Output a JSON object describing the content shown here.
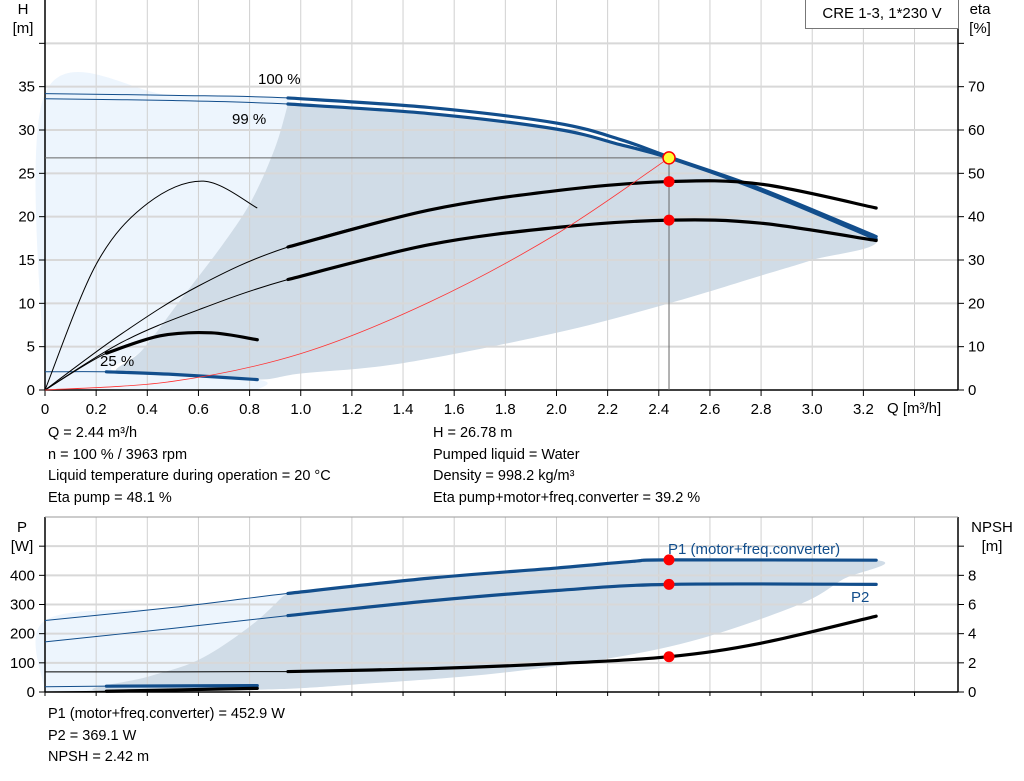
{
  "chart_data": [
    {
      "type": "line",
      "title": "CRE 1-3, 1*230 V",
      "xlabel": "Q [m³/h]",
      "ylabel": {
        "name": "H",
        "unit": "[m]"
      },
      "y2label": {
        "name": "eta",
        "unit": "[%]"
      },
      "grid": true,
      "xlim": [
        0,
        3.57
      ],
      "ylim": [
        0,
        45
      ],
      "y2lim": [
        0,
        90
      ],
      "xticks": [
        "0",
        "0.2",
        "0.4",
        "0.6",
        "0.8",
        "1.0",
        "1.2",
        "1.4",
        "1.6",
        "1.8",
        "2.0",
        "2.2",
        "2.4",
        "2.6",
        "2.8",
        "3.0",
        "3.2"
      ],
      "yticks": [
        "0",
        "5",
        "10",
        "15",
        "20",
        "25",
        "30",
        "35"
      ],
      "y2ticks": [
        "0",
        "10",
        "20",
        "30",
        "40",
        "50",
        "60",
        "70"
      ],
      "colors": {
        "curve": "#124e8c",
        "efficiency": "#000000",
        "system": "#ff3333",
        "region_operating": "#d0dce7",
        "region_extended": "#edf5fd",
        "marker": "#ff0000",
        "duty_point": "#ffff33"
      },
      "regions": [
        {
          "kind": "extended",
          "axis": "left",
          "points": [
            [
              0,
              0
            ],
            [
              0,
              34.2
            ],
            [
              0.5,
              34.0
            ],
            [
              0.95,
              33.7
            ],
            [
              0.95,
              33
            ],
            [
              0.9,
              28
            ],
            [
              0.81,
              22
            ],
            [
              0.7,
              17
            ],
            [
              0.53,
              10.4
            ],
            [
              0.38,
              4.6
            ],
            [
              0.28,
              2.1
            ],
            [
              0.83,
              1.2
            ],
            [
              0.83,
              0
            ]
          ]
        },
        {
          "kind": "operating",
          "axis": "left",
          "points": [
            [
              0.95,
              33.0
            ],
            [
              1.5,
              31.9
            ],
            [
              2.0,
              30.1
            ],
            [
              2.25,
              28.3
            ],
            [
              2.44,
              26.78
            ],
            [
              2.8,
              23.0
            ],
            [
              3.25,
              17.5
            ],
            [
              3.0,
              15
            ],
            [
              2.8,
              13.2
            ],
            [
              2.44,
              10
            ],
            [
              2.0,
              6.6
            ],
            [
              1.4,
              3.1
            ],
            [
              1.0,
              1.9
            ],
            [
              0.83,
              1.2
            ],
            [
              0.5,
              1.8
            ],
            [
              0.28,
              2.1
            ],
            [
              0.38,
              4.6
            ],
            [
              0.53,
              10.4
            ],
            [
              0.7,
              17
            ],
            [
              0.81,
              22
            ],
            [
              0.9,
              28
            ],
            [
              0.95,
              33
            ]
          ]
        }
      ],
      "series": [
        {
          "label": "100 %",
          "kind": "curve",
          "axis": "left",
          "thick_from": 0.95,
          "points": [
            [
              0,
              34.2
            ],
            [
              0.5,
              34.0
            ],
            [
              0.95,
              33.7
            ],
            [
              1.5,
              32.6
            ],
            [
              2.0,
              30.8
            ],
            [
              2.25,
              28.9
            ],
            [
              2.44,
              26.9
            ],
            [
              2.8,
              23.2
            ],
            [
              3.25,
              17.7
            ]
          ]
        },
        {
          "label": "99 %",
          "kind": "curve",
          "axis": "left",
          "thick_from": 0.95,
          "points": [
            [
              0,
              33.6
            ],
            [
              0.5,
              33.4
            ],
            [
              0.95,
              33.0
            ],
            [
              1.5,
              31.9
            ],
            [
              2.0,
              30.1
            ],
            [
              2.25,
              28.3
            ],
            [
              2.44,
              26.78
            ],
            [
              2.8,
              23.0
            ],
            [
              3.25,
              17.4
            ]
          ]
        },
        {
          "label": "25 %",
          "kind": "curve",
          "axis": "left",
          "thick_from": 0.24,
          "points": [
            [
              0,
              2.1
            ],
            [
              0.24,
              2.1
            ],
            [
              0.5,
              1.8
            ],
            [
              0.83,
              1.2
            ]
          ]
        },
        {
          "kind": "efficiency",
          "axis": "right",
          "thick_from": 0.95,
          "points": [
            [
              0,
              0
            ],
            [
              0.3,
              13
            ],
            [
              0.6,
              24
            ],
            [
              0.95,
              33
            ],
            [
              1.5,
              41.5
            ],
            [
              2.0,
              46
            ],
            [
              2.44,
              48.1
            ],
            [
              2.8,
              47.5
            ],
            [
              3.25,
              42
            ]
          ]
        },
        {
          "kind": "efficiency",
          "axis": "right",
          "thick_from": 0.95,
          "points": [
            [
              0,
              0
            ],
            [
              0.3,
              11
            ],
            [
              0.6,
              18.5
            ],
            [
              0.95,
              25.5
            ],
            [
              1.5,
              33.5
            ],
            [
              2.0,
              37.5
            ],
            [
              2.44,
              39.2
            ],
            [
              2.8,
              38.5
            ],
            [
              3.25,
              34.5
            ]
          ]
        },
        {
          "kind": "efficiency",
          "axis": "right",
          "thick_from": 99,
          "points": [
            [
              0,
              0
            ],
            [
              0.2,
              29
            ],
            [
              0.4,
              43
            ],
            [
              0.62,
              48.2
            ],
            [
              0.83,
              42
            ]
          ]
        },
        {
          "kind": "efficiency",
          "axis": "right",
          "thick_from": 0.24,
          "points": [
            [
              0,
              0
            ],
            [
              0.24,
              8.5
            ],
            [
              0.45,
              12.5
            ],
            [
              0.65,
              13.2
            ],
            [
              0.83,
              11.6
            ]
          ]
        },
        {
          "kind": "system",
          "axis": "left",
          "thick_from": 99,
          "points": [
            [
              0,
              0
            ],
            [
              0.5,
              1.0
            ],
            [
              1,
              4.2
            ],
            [
              1.5,
              10.1
            ],
            [
              2,
              18
            ],
            [
              2.44,
              26.78
            ]
          ]
        }
      ],
      "duty_point": {
        "q": 2.44,
        "h": 26.78,
        "eta_pump": 48.1,
        "eta_total": 39.2
      }
    },
    {
      "type": "line",
      "ylabel": {
        "name": "P",
        "unit": "[W]"
      },
      "y2label": {
        "name": "NPSH",
        "unit": "[m]"
      },
      "grid": true,
      "xlim": [
        0,
        3.57
      ],
      "ylim": [
        0,
        600
      ],
      "y2lim": [
        0,
        12
      ],
      "yticks": [
        "0",
        "100",
        "200",
        "300",
        "400"
      ],
      "y2ticks": [
        "0",
        "2",
        "4",
        "6",
        "8"
      ],
      "regions": [
        {
          "kind": "extended",
          "axis": "left",
          "points": [
            [
              0,
              0
            ],
            [
              0,
              245
            ],
            [
              0.5,
              290
            ],
            [
              0.95,
              338
            ],
            [
              0.93,
              328
            ],
            [
              0.8,
              224
            ],
            [
              0.6,
              110
            ],
            [
              0.4,
              52
            ],
            [
              0.2,
              5
            ],
            [
              0.2,
              0
            ]
          ]
        },
        {
          "kind": "operating",
          "axis": "left",
          "points": [
            [
              0.95,
              338
            ],
            [
              1.5,
              390
            ],
            [
              2.0,
              425
            ],
            [
              2.3,
              448
            ],
            [
              2.44,
              452.9
            ],
            [
              3.25,
              452
            ],
            [
              3.12,
              386
            ],
            [
              2.93,
              293
            ],
            [
              2.44,
              155
            ],
            [
              1.82,
              69
            ],
            [
              1.2,
              25
            ],
            [
              0.83,
              8
            ],
            [
              0.2,
              5
            ],
            [
              0.4,
              52
            ],
            [
              0.6,
              110
            ],
            [
              0.8,
              224
            ],
            [
              0.93,
              328
            ]
          ]
        }
      ],
      "series": [
        {
          "label": "P1 (motor+freq.converter)",
          "kind": "curve",
          "axis": "left",
          "thick_from": 0.95,
          "points": [
            [
              0,
              245
            ],
            [
              0.5,
              290
            ],
            [
              0.95,
              338
            ],
            [
              1.5,
              390
            ],
            [
              2.0,
              425
            ],
            [
              2.3,
              448
            ],
            [
              2.44,
              452.9
            ],
            [
              3.25,
              452
            ]
          ]
        },
        {
          "label": "P2",
          "kind": "curve",
          "axis": "left",
          "thick_from": 0.95,
          "points": [
            [
              0,
              172
            ],
            [
              0.5,
              218
            ],
            [
              0.95,
              262
            ],
            [
              1.5,
              312
            ],
            [
              2.0,
              348
            ],
            [
              2.44,
              369.1
            ],
            [
              3.25,
              369
            ]
          ]
        },
        {
          "kind": "curve",
          "axis": "left",
          "thick_from": 0.24,
          "points": [
            [
              0,
              18
            ],
            [
              0.24,
              20
            ],
            [
              0.83,
              22
            ]
          ]
        },
        {
          "kind": "efficiency",
          "axis": "right",
          "thick_from": 0.95,
          "points": [
            [
              0,
              1.38
            ],
            [
              0.95,
              1.4
            ],
            [
              1.5,
              1.6
            ],
            [
              2.0,
              1.95
            ],
            [
              2.44,
              2.42
            ],
            [
              2.8,
              3.35
            ],
            [
              3.25,
              5.2
            ]
          ]
        },
        {
          "kind": "efficiency",
          "axis": "right",
          "thick_from": 0.24,
          "points": [
            [
              0,
              0
            ],
            [
              0.24,
              0.05
            ],
            [
              0.83,
              0.25
            ]
          ]
        }
      ],
      "duty_point": {
        "q": 2.44,
        "p1": 452.9,
        "p2": 369.1,
        "npsh": 2.42
      }
    }
  ],
  "info_top": {
    "left": [
      "Q = 2.44 m³/h",
      "n = 100 % / 3963 rpm",
      "Liquid temperature during operation = 20 °C",
      "Eta pump = 48.1 %"
    ],
    "right": [
      "H = 26.78 m",
      "Pumped liquid = Water",
      "Density = 998.2 kg/m³",
      "Eta pump+motor+freq.converter = 39.2 %"
    ]
  },
  "info_bottom": [
    "P1 (motor+freq.converter) = 452.9 W",
    "P2 = 369.1 W",
    "NPSH = 2.42 m"
  ]
}
